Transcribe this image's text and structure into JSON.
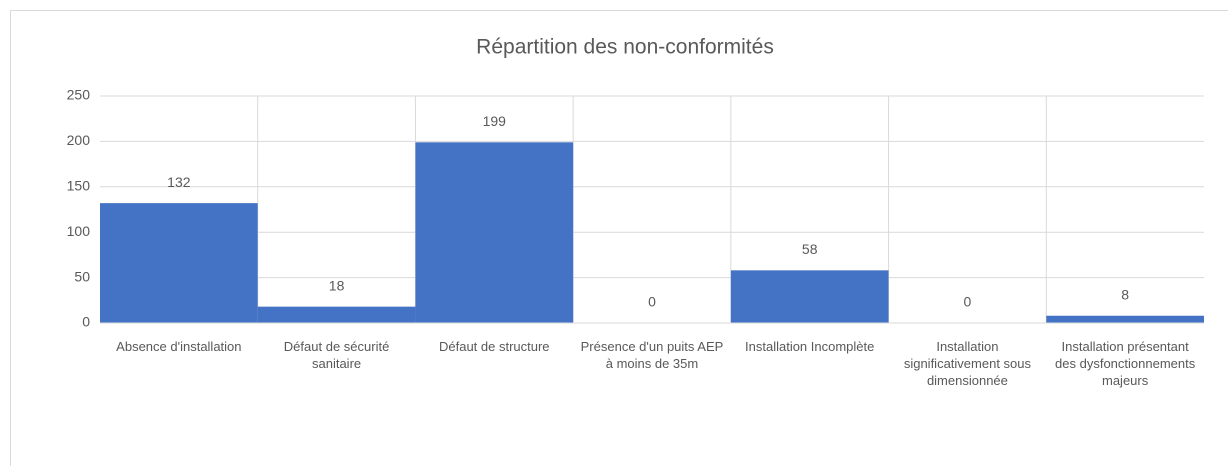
{
  "chart_data": {
    "type": "bar",
    "title": "Répartition des non-conformités",
    "categories": [
      "Absence d'installation",
      "Défaut de sécurité sanitaire",
      "Défaut de structure",
      "Présence d'un puits AEP à moins de 35m",
      "Installation Incomplète",
      "Installation significativement sous dimensionnée",
      "Installation présentant des dysfonctionnements majeurs"
    ],
    "values": [
      132,
      18,
      199,
      0,
      58,
      0,
      8
    ],
    "color": "#4472c4",
    "ylim": [
      0,
      250
    ],
    "yticks": [
      0,
      50,
      100,
      150,
      200,
      250
    ],
    "grid": true
  }
}
